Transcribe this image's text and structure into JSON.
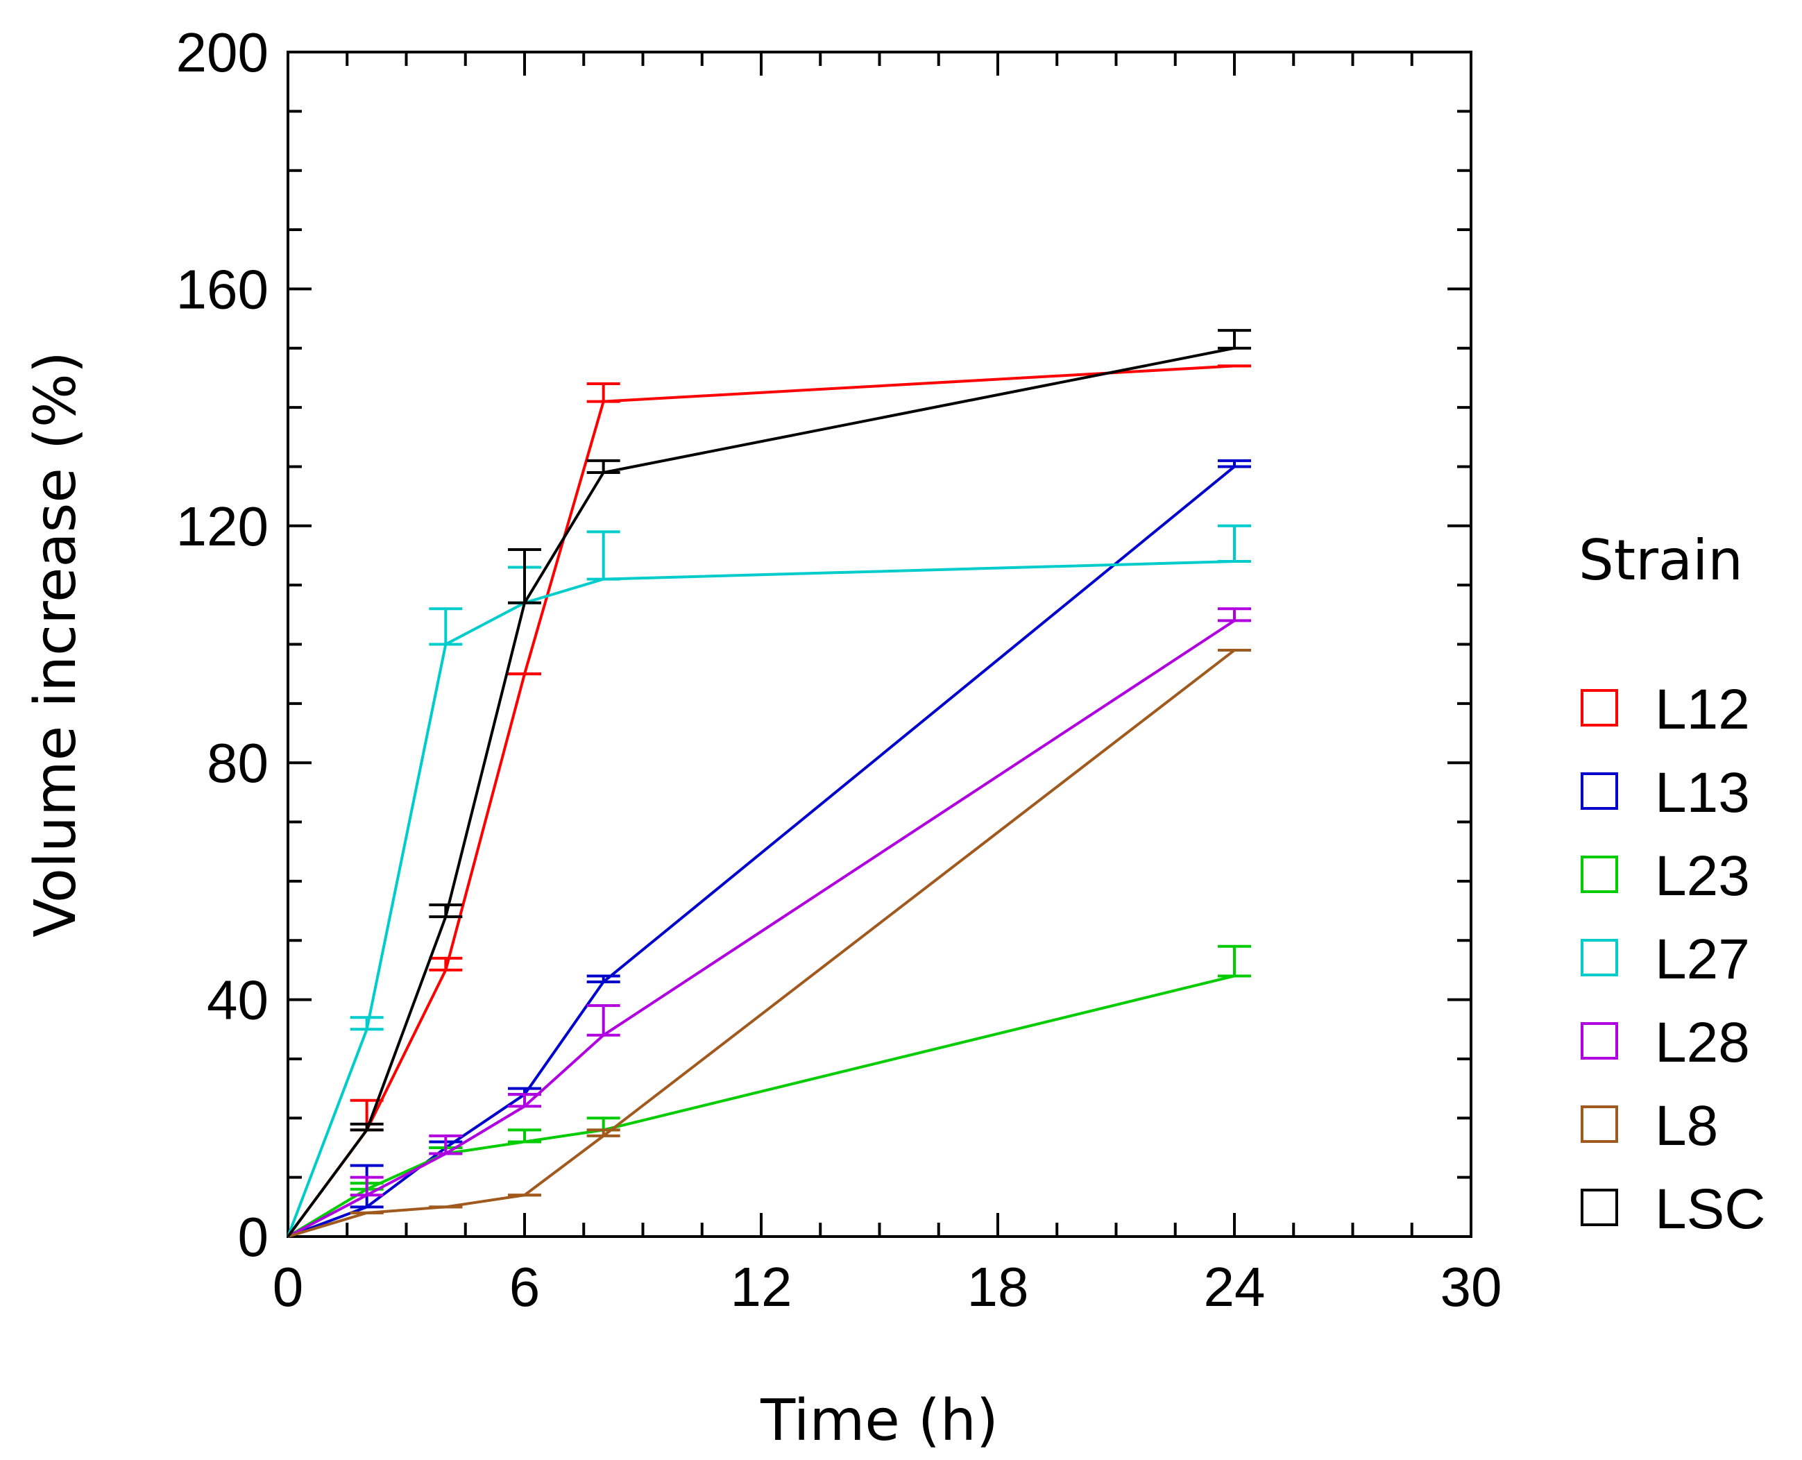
{
  "chart_data": {
    "type": "line",
    "title": "",
    "xlabel": "Time (h)",
    "ylabel": "Volume increase (%)",
    "xlim": [
      0,
      30
    ],
    "ylim": [
      0,
      200
    ],
    "xticks": [
      0,
      6,
      12,
      18,
      24,
      30
    ],
    "yticks": [
      0,
      40,
      80,
      120,
      160,
      200
    ],
    "xtick_labels": [
      "0",
      "6",
      "12",
      "18",
      "24",
      "30"
    ],
    "ytick_labels": [
      "0",
      "40",
      "80",
      "120",
      "160",
      "200"
    ],
    "grid": false,
    "legend": {
      "title": "Strain",
      "position": "right"
    },
    "x": [
      0,
      2,
      4,
      6,
      8,
      24
    ],
    "series": [
      {
        "name": "L12",
        "color": "#ff0000",
        "values": [
          0,
          18,
          45,
          95,
          141,
          147
        ],
        "errors": [
          0,
          5,
          2,
          0,
          3,
          0
        ]
      },
      {
        "name": "L13",
        "color": "#0000cc",
        "values": [
          0,
          5,
          15,
          24,
          43,
          130
        ],
        "errors": [
          0,
          7,
          1,
          1,
          1,
          1
        ]
      },
      {
        "name": "L23",
        "color": "#00cc00",
        "values": [
          0,
          8,
          14,
          16,
          18,
          44
        ],
        "errors": [
          0,
          1,
          1,
          2,
          2,
          5
        ]
      },
      {
        "name": "L27",
        "color": "#00cccc",
        "values": [
          0,
          35,
          100,
          107,
          111,
          114
        ],
        "errors": [
          0,
          2,
          6,
          6,
          8,
          6
        ]
      },
      {
        "name": "L28",
        "color": "#b000e0",
        "values": [
          0,
          7,
          14,
          22,
          34,
          104
        ],
        "errors": [
          0,
          3,
          3,
          2,
          5,
          2
        ]
      },
      {
        "name": "L8",
        "color": "#a05a1e",
        "values": [
          0,
          4,
          5,
          7,
          17,
          99
        ],
        "errors": [
          0,
          0,
          0,
          0,
          1,
          0
        ]
      },
      {
        "name": "LSC",
        "color": "#000000",
        "values": [
          0,
          18,
          54,
          107,
          129,
          150
        ],
        "errors": [
          0,
          1,
          2,
          9,
          2,
          3
        ]
      }
    ]
  }
}
